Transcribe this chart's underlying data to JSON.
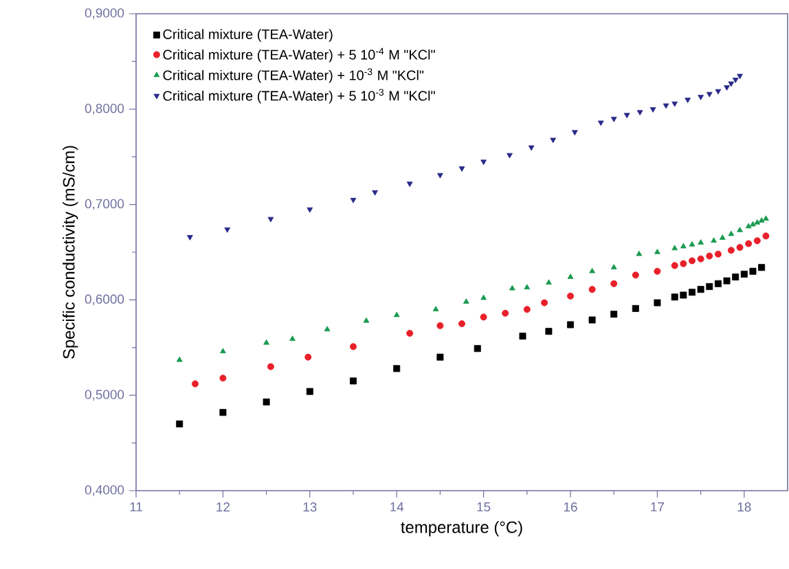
{
  "chart_data": {
    "type": "scatter",
    "xlabel": "temperature (°C)",
    "ylabel": "Specific conductivity (mS/cm)",
    "xlim": [
      11,
      18.5
    ],
    "ylim": [
      0.4,
      0.9
    ],
    "xticks": [
      11,
      12,
      13,
      14,
      15,
      16,
      17,
      18
    ],
    "yticks": [
      {
        "value": 0.4,
        "label": "0,4000"
      },
      {
        "value": 0.5,
        "label": "0,5000"
      },
      {
        "value": 0.6,
        "label": "0,6000"
      },
      {
        "value": 0.7,
        "label": "0,7000"
      },
      {
        "value": 0.8,
        "label": "0,8000"
      },
      {
        "value": 0.9,
        "label": "0,9000"
      }
    ],
    "grid": false,
    "legend": "top left",
    "series": [
      {
        "name": "Critical mixture (TEA-Water)",
        "color": "#000000",
        "marker": "square",
        "x": [
          11.5,
          12,
          12.5,
          13,
          13.5,
          14,
          14.5,
          14.93,
          15.45,
          15.75,
          16,
          16.25,
          16.5,
          16.75,
          17,
          17.2,
          17.3,
          17.4,
          17.5,
          17.6,
          17.7,
          17.8,
          17.9,
          18,
          18.1,
          18.2
        ],
        "values": [
          0.47,
          0.482,
          0.493,
          0.504,
          0.515,
          0.528,
          0.54,
          0.549,
          0.562,
          0.567,
          0.574,
          0.579,
          0.585,
          0.591,
          0.597,
          0.603,
          0.605,
          0.608,
          0.611,
          0.614,
          0.617,
          0.62,
          0.624,
          0.627,
          0.63,
          0.634
        ]
      },
      {
        "name": "Critical mixture (TEA-Water) + 5 10$^{-4}$ M \"KCl\"",
        "color": "#e8202a",
        "marker": "circle",
        "x": [
          11.68,
          12,
          12.55,
          12.98,
          13.5,
          14.15,
          14.5,
          14.75,
          15,
          15.25,
          15.5,
          15.7,
          16,
          16.25,
          16.5,
          16.75,
          17,
          17.2,
          17.3,
          17.4,
          17.5,
          17.6,
          17.7,
          17.85,
          17.95,
          18.05,
          18.15,
          18.25
        ],
        "values": [
          0.512,
          0.518,
          0.53,
          0.54,
          0.551,
          0.565,
          0.573,
          0.575,
          0.582,
          0.586,
          0.59,
          0.597,
          0.604,
          0.611,
          0.617,
          0.626,
          0.63,
          0.636,
          0.638,
          0.641,
          0.643,
          0.646,
          0.648,
          0.652,
          0.655,
          0.659,
          0.662,
          0.667
        ]
      },
      {
        "name": "Critical mixture (TEA-Water) + 10$^{-3}$ M \"KCl\"",
        "color": "#1a9a50",
        "marker": "triangle",
        "x": [
          11.5,
          12,
          12.5,
          12.8,
          13.2,
          13.65,
          14,
          14.45,
          14.8,
          15,
          15.33,
          15.5,
          15.75,
          16,
          16.25,
          16.5,
          16.79,
          17,
          17.2,
          17.3,
          17.4,
          17.5,
          17.65,
          17.75,
          17.85,
          17.95,
          18.05,
          18.1,
          18.15,
          18.2,
          18.25
        ],
        "values": [
          0.537,
          0.546,
          0.555,
          0.559,
          0.569,
          0.578,
          0.584,
          0.59,
          0.598,
          0.602,
          0.612,
          0.613,
          0.618,
          0.624,
          0.63,
          0.634,
          0.648,
          0.65,
          0.654,
          0.656,
          0.658,
          0.66,
          0.662,
          0.665,
          0.669,
          0.673,
          0.677,
          0.679,
          0.681,
          0.683,
          0.685
        ]
      },
      {
        "name": "Critical mixture (TEA-Water) + 5 10$^{-3}$ M \"KCl\"",
        "color": "#2a2a8a",
        "marker": "triangle down",
        "x": [
          11.62,
          12.05,
          12.55,
          13,
          13.5,
          13.75,
          14.15,
          14.5,
          14.75,
          15,
          15.3,
          15.55,
          15.8,
          16.05,
          16.35,
          16.5,
          16.65,
          16.8,
          16.95,
          17.1,
          17.2,
          17.35,
          17.5,
          17.6,
          17.7,
          17.8,
          17.85,
          17.9,
          17.95
        ],
        "values": [
          0.666,
          0.674,
          0.685,
          0.695,
          0.705,
          0.713,
          0.722,
          0.731,
          0.738,
          0.745,
          0.752,
          0.76,
          0.768,
          0.776,
          0.786,
          0.79,
          0.794,
          0.797,
          0.8,
          0.804,
          0.806,
          0.81,
          0.813,
          0.816,
          0.819,
          0.823,
          0.827,
          0.831,
          0.835
        ]
      }
    ]
  }
}
